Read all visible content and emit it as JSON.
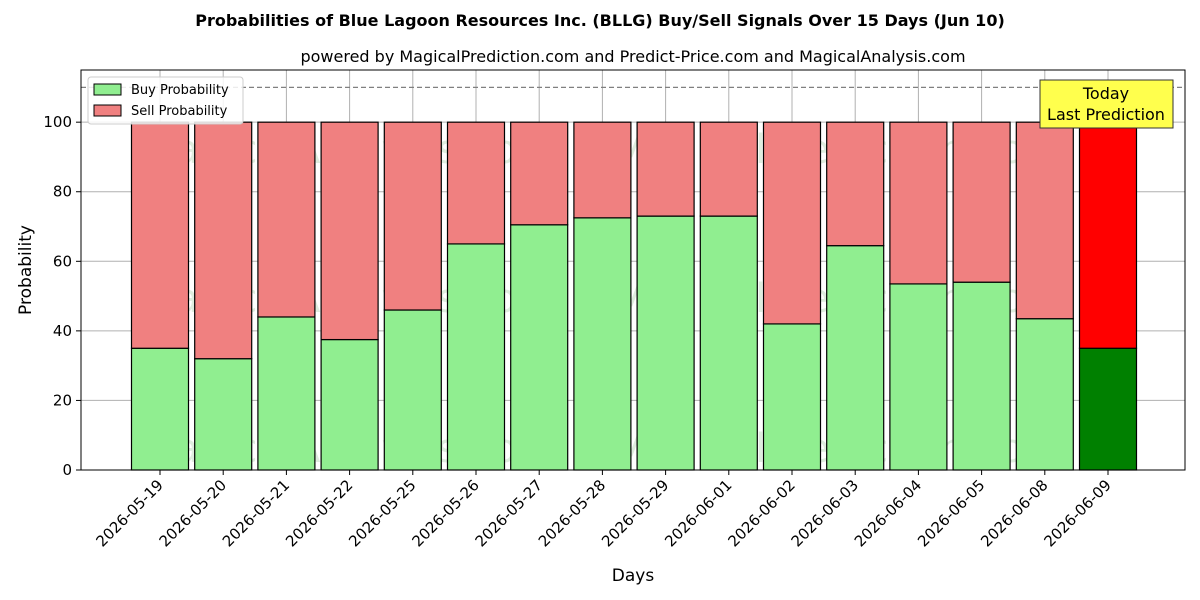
{
  "chart_data": {
    "type": "bar",
    "stacked": true,
    "title": "Probabilities of Blue Lagoon Resources Inc. (BLLG) Buy/Sell Signals Over 15 Days (Jun 10)",
    "subtitle": "powered by MagicalPrediction.com and Predict-Price.com and MagicalAnalysis.com",
    "xlabel": "Days",
    "ylabel": "Probability",
    "ylim": [
      0,
      115
    ],
    "yticks": [
      0,
      20,
      40,
      60,
      80,
      100
    ],
    "grid": true,
    "legend_position": "top-left",
    "categories": [
      "2026-05-19",
      "2026-05-20",
      "2026-05-21",
      "2026-05-22",
      "2026-05-25",
      "2026-05-26",
      "2026-05-27",
      "2026-05-28",
      "2026-05-29",
      "2026-06-01",
      "2026-06-02",
      "2026-06-03",
      "2026-06-04",
      "2026-06-05",
      "2026-06-08",
      "2026-06-09"
    ],
    "series": [
      {
        "name": "Buy Probability",
        "color": "#90ee90",
        "highlight_color": "#008000",
        "values": [
          35,
          32,
          44,
          37.5,
          46,
          65,
          70.5,
          72.5,
          73,
          73,
          42,
          64.5,
          53.5,
          54,
          43.5,
          35
        ]
      },
      {
        "name": "Sell Probability",
        "color": "#f08080",
        "highlight_color": "#ff0000",
        "values": [
          65,
          68,
          56,
          62.5,
          54,
          35,
          29.5,
          27.5,
          27,
          27,
          58,
          35.5,
          46.5,
          46,
          56.5,
          65
        ]
      }
    ],
    "highlight_index": 15,
    "reference_line": {
      "y": 110,
      "style": "dashed",
      "color": "#808080"
    },
    "annotation": {
      "line1": "Today",
      "line2": "Last Prediction",
      "background": "#ffff4d"
    },
    "watermarks": [
      "MagicalAnalysis.com",
      "MagicalPrediction.com"
    ]
  }
}
